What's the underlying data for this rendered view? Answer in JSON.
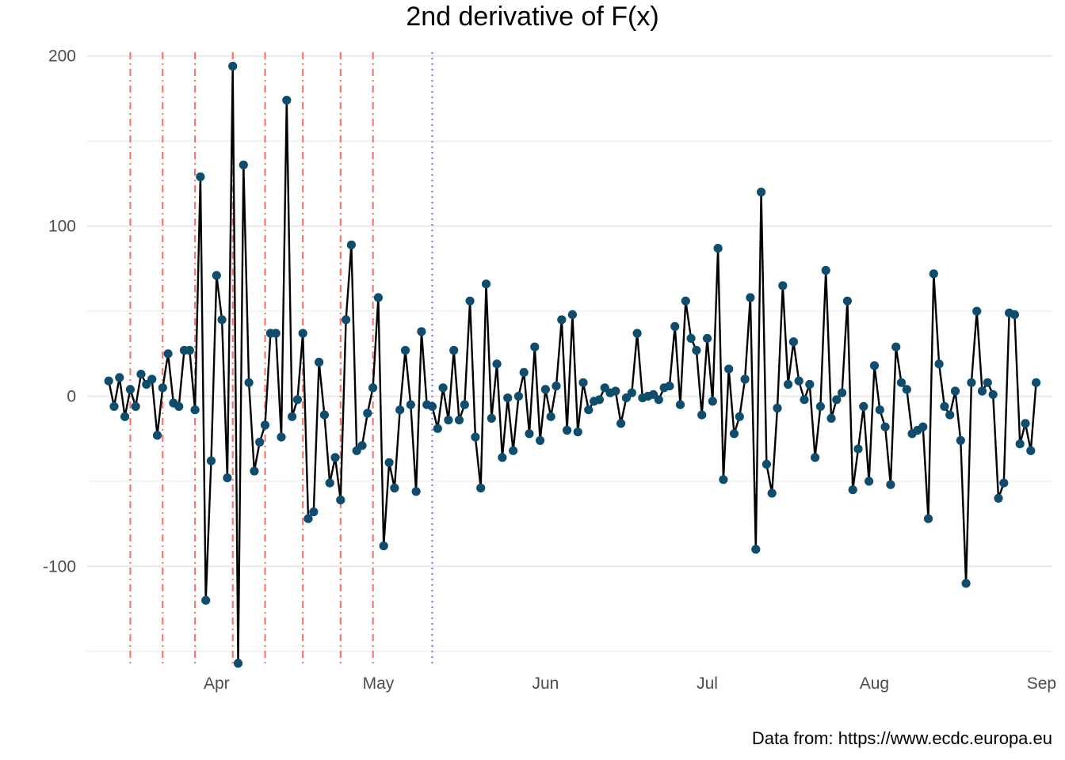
{
  "chart_data": {
    "type": "line",
    "title": "2nd derivative of F(x)",
    "caption": "Data from: https://www.ecdc.europa.eu",
    "xlabel": "",
    "ylabel": "",
    "x_start": "2020-03-12",
    "xlim": [
      "2020-03-08",
      "2020-09-03"
    ],
    "ylim": [
      -158,
      205
    ],
    "y_ticks": [
      -100,
      0,
      100,
      200
    ],
    "y_tick_labels": [
      "-100",
      "0",
      "100",
      "200"
    ],
    "x_ticks": [
      "2020-04-01",
      "2020-05-01",
      "2020-06-01",
      "2020-07-01",
      "2020-08-01",
      "2020-09-01"
    ],
    "x_tick_labels": [
      "Apr",
      "May",
      "Jun",
      "Jul",
      "Aug",
      "Sep"
    ],
    "grid": true,
    "legend": "none",
    "line_color": "#000000",
    "point_color": "#0e4d6e",
    "red_vlines": [
      "2020-03-16",
      "2020-03-22",
      "2020-03-28",
      "2020-04-04",
      "2020-04-10",
      "2020-04-17",
      "2020-04-24",
      "2020-04-30"
    ],
    "red_vline_color": "#f8766d",
    "blue_vlines": [
      "2020-05-11"
    ],
    "blue_vline_color": "#7b7bf7",
    "values": [
      9,
      -6,
      11,
      -12,
      4,
      -6,
      13,
      7,
      10,
      -23,
      5,
      25,
      -4,
      -6,
      27,
      27,
      -8,
      129,
      -120,
      -38,
      71,
      45,
      -48,
      194,
      -157,
      136,
      8,
      -44,
      -27,
      -17,
      37,
      37,
      -24,
      174,
      -12,
      -2,
      37,
      -72,
      -68,
      20,
      -11,
      -51,
      -36,
      -61,
      45,
      89,
      -32,
      -29,
      -10,
      5,
      58,
      -88,
      -39,
      -54,
      -8,
      27,
      -5,
      -56,
      38,
      -5,
      -6,
      -19,
      5,
      -14,
      27,
      -14,
      -5,
      56,
      -24,
      -54,
      66,
      -13,
      19,
      -36,
      -1,
      -32,
      0,
      14,
      -22,
      29,
      -26,
      4,
      -12,
      6,
      45,
      -20,
      48,
      -21,
      8,
      -8,
      -3,
      -2,
      5,
      2,
      3,
      -16,
      -1,
      2,
      37,
      -1,
      0,
      1,
      -2,
      5,
      6,
      41,
      -5,
      56,
      34,
      27,
      -11,
      34,
      -3,
      87,
      -49,
      16,
      -22,
      -12,
      10,
      58,
      -90,
      120,
      -40,
      -57,
      -7,
      65,
      7,
      32,
      9,
      -2,
      7,
      -36,
      -6,
      74,
      -13,
      -2,
      2,
      56,
      -55,
      -31,
      -6,
      -50,
      18,
      -8,
      -18,
      -52,
      29,
      8,
      4,
      -22,
      -20,
      -18,
      -72,
      72,
      19,
      -6,
      -11,
      3,
      -26,
      -110,
      8,
      50,
      3,
      8,
      1,
      -60,
      -51,
      49,
      48,
      -28,
      -16,
      -32,
      8
    ]
  }
}
